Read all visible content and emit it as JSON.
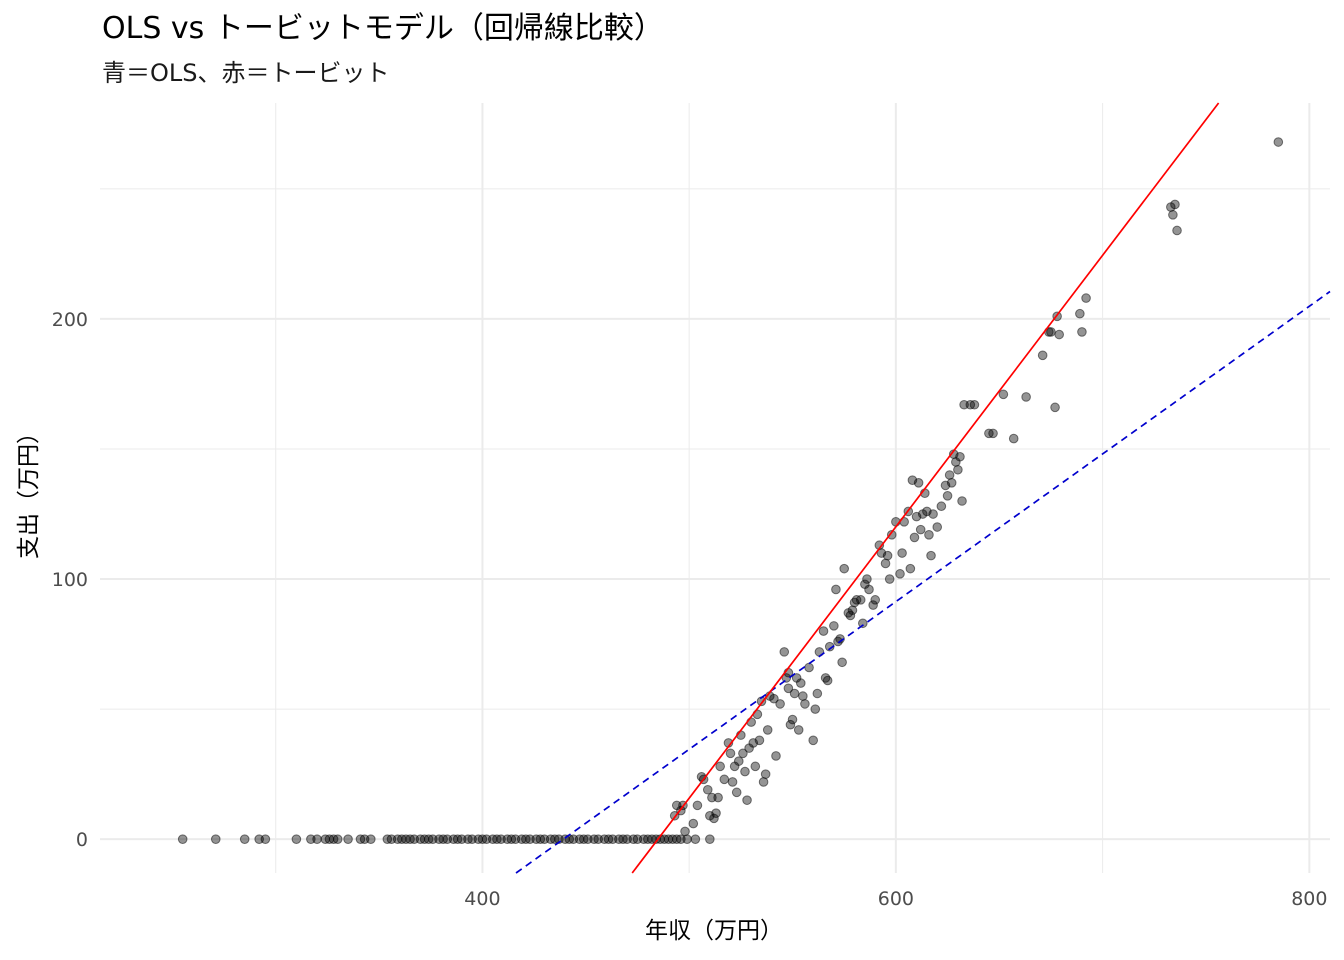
{
  "chart_data": {
    "type": "scatter",
    "title": "OLS vs トービットモデル（回帰線比較）",
    "subtitle": "青＝OLS、赤＝トービット",
    "xlabel": "年収（万円）",
    "ylabel": "支出（万円）",
    "xlim": [
      215,
      810
    ],
    "ylim": [
      -13,
      283
    ],
    "x_ticks": [
      400,
      600,
      800
    ],
    "y_ticks": [
      0,
      100,
      200
    ],
    "grid": true,
    "colors": {
      "points": "#000000",
      "ols": "#0000CD",
      "tobit": "#FF0000",
      "grid": "#EBEBEB"
    },
    "lines": [
      {
        "name": "OLS",
        "style": "dashed",
        "color": "#0000CD",
        "intercept": -249.3,
        "slope": 0.5677
      },
      {
        "name": "トービット",
        "style": "solid",
        "color": "#FF0000",
        "intercept": -506.0,
        "slope": 1.0435
      }
    ],
    "points": [
      [
        255,
        0
      ],
      [
        271,
        0
      ],
      [
        285,
        0
      ],
      [
        292,
        0
      ],
      [
        295,
        0
      ],
      [
        310,
        0
      ],
      [
        317,
        0
      ],
      [
        320,
        0
      ],
      [
        324,
        0
      ],
      [
        326,
        0
      ],
      [
        328,
        0
      ],
      [
        330,
        0
      ],
      [
        335,
        0
      ],
      [
        341,
        0
      ],
      [
        343,
        0
      ],
      [
        346,
        0
      ],
      [
        354,
        0
      ],
      [
        356,
        0
      ],
      [
        359,
        0
      ],
      [
        361,
        0
      ],
      [
        363,
        0
      ],
      [
        365,
        0
      ],
      [
        367,
        0
      ],
      [
        370,
        0
      ],
      [
        372,
        0
      ],
      [
        374,
        0
      ],
      [
        376,
        0
      ],
      [
        379,
        0
      ],
      [
        381,
        0
      ],
      [
        383,
        0
      ],
      [
        386,
        0
      ],
      [
        388,
        0
      ],
      [
        390,
        0
      ],
      [
        393,
        0
      ],
      [
        395,
        0
      ],
      [
        398,
        0
      ],
      [
        400,
        0
      ],
      [
        402,
        0
      ],
      [
        405,
        0
      ],
      [
        407,
        0
      ],
      [
        409,
        0
      ],
      [
        412,
        0
      ],
      [
        414,
        0
      ],
      [
        416,
        0
      ],
      [
        419,
        0
      ],
      [
        421,
        0
      ],
      [
        423,
        0
      ],
      [
        426,
        0
      ],
      [
        428,
        0
      ],
      [
        430,
        0
      ],
      [
        433,
        0
      ],
      [
        435,
        0
      ],
      [
        437,
        0
      ],
      [
        440,
        0
      ],
      [
        442,
        0
      ],
      [
        444,
        0
      ],
      [
        447,
        0
      ],
      [
        449,
        0
      ],
      [
        451,
        0
      ],
      [
        454,
        0
      ],
      [
        456,
        0
      ],
      [
        459,
        0
      ],
      [
        461,
        0
      ],
      [
        463,
        0
      ],
      [
        466,
        0
      ],
      [
        468,
        0
      ],
      [
        470,
        0
      ],
      [
        473,
        0
      ],
      [
        475,
        0
      ],
      [
        478,
        0
      ],
      [
        480,
        0
      ],
      [
        482,
        0
      ],
      [
        484,
        0
      ],
      [
        486,
        0
      ],
      [
        488,
        0
      ],
      [
        490,
        0
      ],
      [
        492,
        0
      ],
      [
        494,
        0
      ],
      [
        496,
        0
      ],
      [
        499,
        0
      ],
      [
        503,
        0
      ],
      [
        510,
        0
      ],
      [
        493,
        9
      ],
      [
        494,
        13
      ],
      [
        496,
        11
      ],
      [
        497,
        13
      ],
      [
        498,
        3
      ],
      [
        502,
        6
      ],
      [
        504,
        13
      ],
      [
        506,
        24
      ],
      [
        507,
        23
      ],
      [
        509,
        19
      ],
      [
        510,
        9
      ],
      [
        511,
        16
      ],
      [
        512,
        8
      ],
      [
        513,
        10
      ],
      [
        514,
        16
      ],
      [
        515,
        28
      ],
      [
        517,
        23
      ],
      [
        519,
        37
      ],
      [
        520,
        33
      ],
      [
        521,
        22
      ],
      [
        522,
        28
      ],
      [
        523,
        18
      ],
      [
        524,
        30
      ],
      [
        525,
        40
      ],
      [
        526,
        33
      ],
      [
        527,
        26
      ],
      [
        528,
        15
      ],
      [
        529,
        35
      ],
      [
        530,
        45
      ],
      [
        531,
        37
      ],
      [
        532,
        28
      ],
      [
        533,
        48
      ],
      [
        534,
        38
      ],
      [
        535,
        53
      ],
      [
        536,
        22
      ],
      [
        537,
        25
      ],
      [
        538,
        42
      ],
      [
        539,
        55
      ],
      [
        541,
        54
      ],
      [
        542,
        32
      ],
      [
        544,
        52
      ],
      [
        546,
        72
      ],
      [
        547,
        62
      ],
      [
        548,
        58
      ],
      [
        548,
        64
      ],
      [
        549,
        44
      ],
      [
        550,
        46
      ],
      [
        551,
        56
      ],
      [
        552,
        62
      ],
      [
        553,
        42
      ],
      [
        554,
        60
      ],
      [
        555,
        55
      ],
      [
        556,
        52
      ],
      [
        558,
        66
      ],
      [
        560,
        38
      ],
      [
        561,
        50
      ],
      [
        562,
        56
      ],
      [
        563,
        72
      ],
      [
        565,
        80
      ],
      [
        566,
        62
      ],
      [
        567,
        61
      ],
      [
        568,
        74
      ],
      [
        570,
        82
      ],
      [
        571,
        96
      ],
      [
        572,
        76
      ],
      [
        573,
        77
      ],
      [
        574,
        68
      ],
      [
        575,
        104
      ],
      [
        577,
        87
      ],
      [
        578,
        86
      ],
      [
        579,
        88
      ],
      [
        580,
        91
      ],
      [
        581,
        92
      ],
      [
        583,
        92
      ],
      [
        584,
        83
      ],
      [
        585,
        98
      ],
      [
        586,
        100
      ],
      [
        587,
        96
      ],
      [
        589,
        90
      ],
      [
        590,
        92
      ],
      [
        592,
        113
      ],
      [
        593,
        110
      ],
      [
        595,
        106
      ],
      [
        596,
        109
      ],
      [
        597,
        100
      ],
      [
        598,
        117
      ],
      [
        600,
        122
      ],
      [
        602,
        102
      ],
      [
        603,
        110
      ],
      [
        604,
        122
      ],
      [
        606,
        126
      ],
      [
        607,
        104
      ],
      [
        608,
        138
      ],
      [
        609,
        116
      ],
      [
        610,
        124
      ],
      [
        611,
        137
      ],
      [
        612,
        119
      ],
      [
        613,
        125
      ],
      [
        614,
        133
      ],
      [
        615,
        126
      ],
      [
        616,
        117
      ],
      [
        617,
        109
      ],
      [
        618,
        125
      ],
      [
        620,
        120
      ],
      [
        622,
        128
      ],
      [
        624,
        136
      ],
      [
        625,
        132
      ],
      [
        626,
        140
      ],
      [
        627,
        137
      ],
      [
        628,
        148
      ],
      [
        629,
        145
      ],
      [
        630,
        142
      ],
      [
        631,
        147
      ],
      [
        632,
        130
      ],
      [
        633,
        167
      ],
      [
        636,
        167
      ],
      [
        638,
        167
      ],
      [
        645,
        156
      ],
      [
        647,
        156
      ],
      [
        652,
        171
      ],
      [
        657,
        154
      ],
      [
        663,
        170
      ],
      [
        671,
        186
      ],
      [
        674,
        195
      ],
      [
        675,
        195
      ],
      [
        677,
        166
      ],
      [
        678,
        201
      ],
      [
        679,
        194
      ],
      [
        689,
        202
      ],
      [
        690,
        195
      ],
      [
        692,
        208
      ],
      [
        733,
        243
      ],
      [
        734,
        240
      ],
      [
        735,
        244
      ],
      [
        736,
        234
      ],
      [
        785,
        268
      ]
    ]
  }
}
